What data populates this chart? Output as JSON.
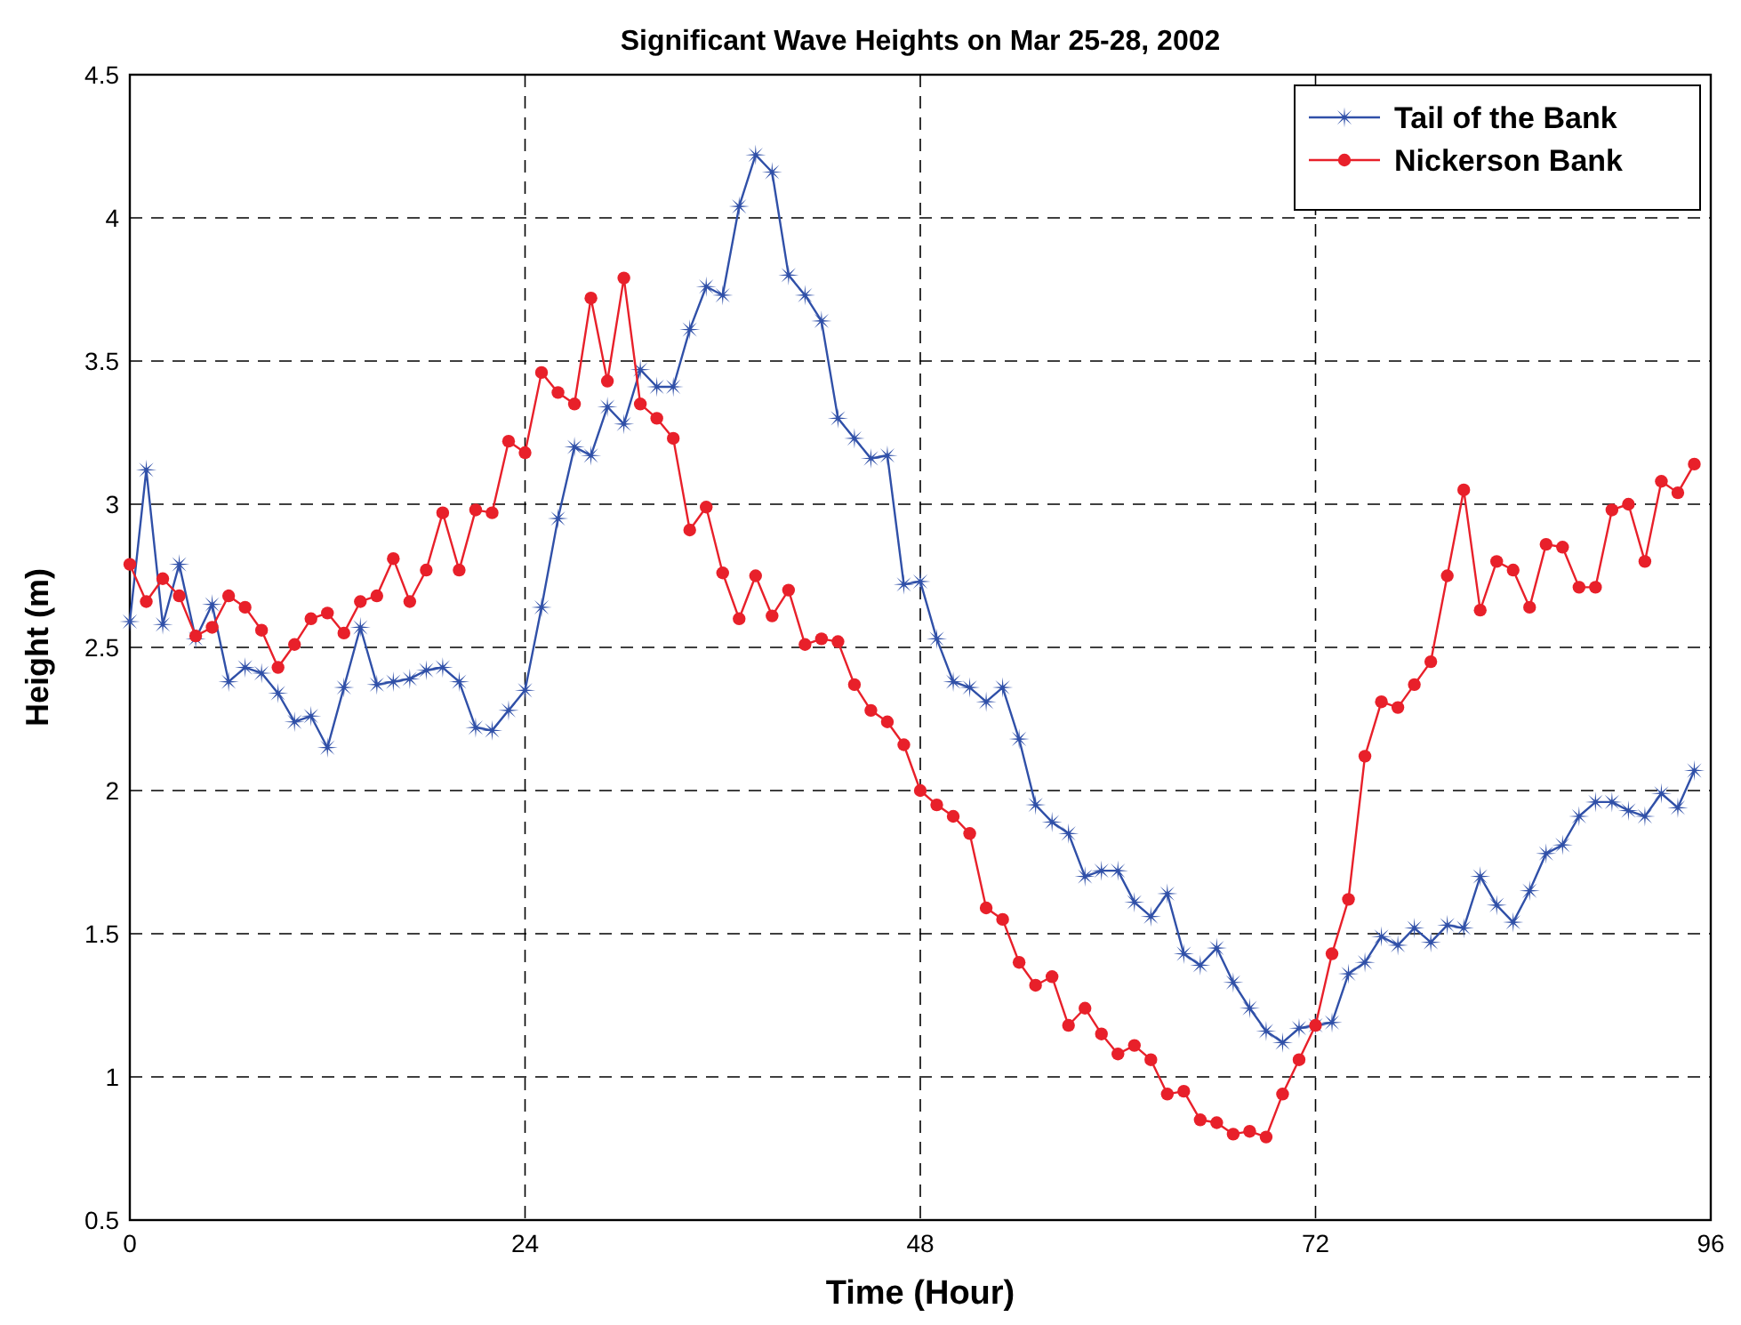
{
  "chart_data": {
    "type": "line",
    "title": "Significant Wave Heights on Mar 25-28, 2002",
    "xlabel": "Time (Hour)",
    "ylabel": "Height (m)",
    "x": [
      0,
      1,
      2,
      3,
      4,
      5,
      6,
      7,
      8,
      9,
      10,
      11,
      12,
      13,
      14,
      15,
      16,
      17,
      18,
      19,
      20,
      21,
      22,
      23,
      24,
      25,
      26,
      27,
      28,
      29,
      30,
      31,
      32,
      33,
      34,
      35,
      36,
      37,
      38,
      39,
      40,
      41,
      42,
      43,
      44,
      45,
      46,
      47,
      48,
      49,
      50,
      51,
      52,
      53,
      54,
      55,
      56,
      57,
      58,
      59,
      60,
      61,
      62,
      63,
      64,
      65,
      66,
      67,
      68,
      69,
      70,
      71,
      72,
      73,
      74,
      75,
      76,
      77,
      78,
      79,
      80,
      81,
      82,
      83,
      84,
      85,
      86,
      87,
      88,
      89,
      90,
      91,
      92,
      93,
      94,
      95
    ],
    "series": [
      {
        "name": "Tail of the Bank",
        "color": "#3050a8",
        "marker": "star",
        "values": [
          2.59,
          3.12,
          2.58,
          2.79,
          2.53,
          2.65,
          2.38,
          2.43,
          2.41,
          2.34,
          2.24,
          2.26,
          2.15,
          2.36,
          2.57,
          2.37,
          2.38,
          2.39,
          2.42,
          2.43,
          2.38,
          2.22,
          2.21,
          2.28,
          2.35,
          2.64,
          2.95,
          3.2,
          3.17,
          3.34,
          3.28,
          3.47,
          3.41,
          3.41,
          3.61,
          3.76,
          3.73,
          4.04,
          4.22,
          4.16,
          3.8,
          3.73,
          3.64,
          3.3,
          3.23,
          3.16,
          3.17,
          2.72,
          2.73,
          2.53,
          2.38,
          2.36,
          2.31,
          2.36,
          2.18,
          1.95,
          1.89,
          1.85,
          1.7,
          1.72,
          1.72,
          1.61,
          1.56,
          1.64,
          1.43,
          1.39,
          1.45,
          1.33,
          1.24,
          1.16,
          1.12,
          1.17,
          1.18,
          1.19,
          1.36,
          1.4,
          1.49,
          1.46,
          1.52,
          1.47,
          1.53,
          1.52,
          1.7,
          1.6,
          1.54,
          1.65,
          1.78,
          1.81,
          1.91,
          1.96,
          1.96,
          1.93,
          1.91,
          1.99,
          1.94,
          2.07
        ]
      },
      {
        "name": "Nickerson Bank",
        "color": "#e8202a",
        "marker": "circle",
        "values": [
          2.79,
          2.66,
          2.74,
          2.68,
          2.54,
          2.57,
          2.68,
          2.64,
          2.56,
          2.43,
          2.51,
          2.6,
          2.62,
          2.55,
          2.66,
          2.68,
          2.81,
          2.66,
          2.77,
          2.97,
          2.77,
          2.98,
          2.97,
          3.22,
          3.18,
          3.46,
          3.39,
          3.35,
          3.72,
          3.43,
          3.79,
          3.35,
          3.3,
          3.23,
          2.91,
          2.99,
          2.76,
          2.6,
          2.75,
          2.61,
          2.7,
          2.51,
          2.53,
          2.52,
          2.37,
          2.28,
          2.24,
          2.16,
          2.0,
          1.95,
          1.91,
          1.85,
          1.59,
          1.55,
          1.4,
          1.32,
          1.35,
          1.18,
          1.24,
          1.15,
          1.08,
          1.11,
          1.06,
          0.94,
          0.95,
          0.85,
          0.84,
          0.8,
          0.81,
          0.79,
          0.94,
          1.06,
          1.18,
          1.43,
          1.62,
          2.12,
          2.31,
          2.29,
          2.37,
          2.45,
          2.75,
          3.05,
          2.63,
          2.8,
          2.77,
          2.64,
          2.86,
          2.85,
          2.71,
          2.71,
          2.98,
          3.0,
          2.8,
          3.08,
          3.04,
          3.14
        ]
      }
    ],
    "xlim": [
      0,
      96
    ],
    "xticks": [
      0,
      24,
      48,
      72,
      96
    ],
    "ylim": [
      0.5,
      4.5
    ],
    "yticks": [
      0.5,
      1,
      1.5,
      2,
      2.5,
      3,
      3.5,
      4,
      4.5
    ],
    "grid": true,
    "legend": "top right"
  }
}
